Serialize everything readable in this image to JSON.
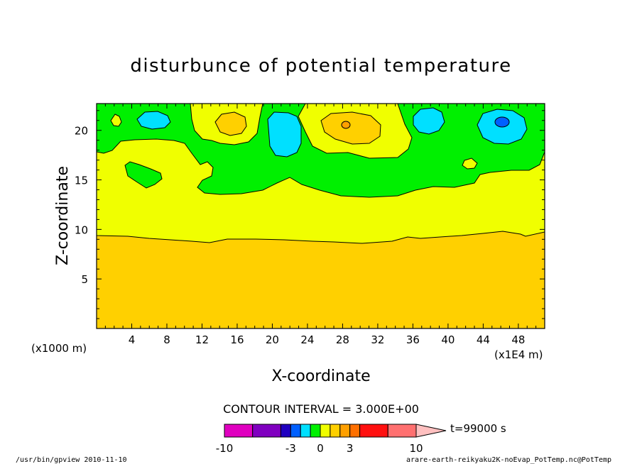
{
  "chart_data": {
    "type": "heatmap",
    "title": "disturbunce of potential temperature",
    "xlabel": "X-coordinate",
    "ylabel": "Z-coordinate",
    "x_unit_label": "(x1000 m)",
    "x_scale_label": "(x1E4 m)",
    "xlim": [
      0,
      51
    ],
    "ylim": [
      0,
      22.7
    ],
    "x_ticks": [
      4,
      8,
      12,
      16,
      20,
      24,
      28,
      32,
      36,
      40,
      44,
      48
    ],
    "y_ticks": [
      5,
      10,
      15,
      20
    ],
    "contour_interval_label": "CONTOUR INTERVAL = 3.000E+00",
    "time_label": "t=99000 s",
    "colorbar": {
      "tick_labels": [
        "-10",
        "-3",
        "0",
        "3",
        "10"
      ],
      "tick_values": [
        -10,
        -3,
        0,
        3,
        10
      ],
      "bins": [
        {
          "from": -10,
          "to": -7,
          "color": "#e000c0"
        },
        {
          "from": -7,
          "to": -4,
          "color": "#8000c0"
        },
        {
          "from": -4,
          "to": -3,
          "color": "#2000c0"
        },
        {
          "from": -3,
          "to": -2,
          "color": "#0060ff"
        },
        {
          "from": -2,
          "to": -1,
          "color": "#00e0ff"
        },
        {
          "from": -1,
          "to": 0,
          "color": "#00f000"
        },
        {
          "from": 0,
          "to": 1,
          "color": "#f0ff00"
        },
        {
          "from": 1,
          "to": 2,
          "color": "#ffd000"
        },
        {
          "from": 2,
          "to": 3,
          "color": "#ffa000"
        },
        {
          "from": 3,
          "to": 4,
          "color": "#ff7000"
        },
        {
          "from": 4,
          "to": 7,
          "color": "#ff1010"
        },
        {
          "from": 7,
          "to": 10,
          "color": "#ff7070"
        }
      ],
      "overflow_color": "#ffc0c0"
    },
    "field_levels": [
      {
        "range": "[1,2)",
        "color": "#ffd000",
        "z_min": 0,
        "z_max": 9.4
      },
      {
        "range": "[0,1)",
        "color": "#f0ff00",
        "z_min": 9.4,
        "z_max": 17.5
      },
      {
        "range": "[-1,0)",
        "color": "#00f000",
        "z_min": 13.5,
        "z_max": 22.7
      }
    ],
    "features": [
      {
        "x": 6,
        "z": 21.1,
        "value_range": "[-2,-1)"
      },
      {
        "x": 21,
        "z": 19.8,
        "value_range": "[-2,-1)"
      },
      {
        "x": 37,
        "z": 20.8,
        "value_range": "[-2,-1)"
      },
      {
        "x": 46,
        "z": 20.7,
        "value_range": "[-2,-1)"
      },
      {
        "x": 46.3,
        "z": 20.9,
        "value_range": "[-3,-2)"
      },
      {
        "x": 15.3,
        "z": 20.8,
        "value_range": "[1,2)"
      },
      {
        "x": 28.8,
        "z": 20.6,
        "value_range": "[1,2)"
      },
      {
        "x": 28.4,
        "z": 20.8,
        "value_range": "[2,3)"
      },
      {
        "x": 6,
        "z": 16.1,
        "value_range": "[-1,0)"
      },
      {
        "x": 42,
        "z": 16.5,
        "value_range": "[0,1)"
      },
      {
        "x": 2.1,
        "z": 21.1,
        "value_range": "[0,1)"
      }
    ],
    "grid": false,
    "legend": "bottom"
  },
  "footer": {
    "left": "/usr/bin/gpview  2010-11-10",
    "right": "arare-earth-reikyaku2K-noEvap_PotTemp.nc@PotTemp"
  }
}
